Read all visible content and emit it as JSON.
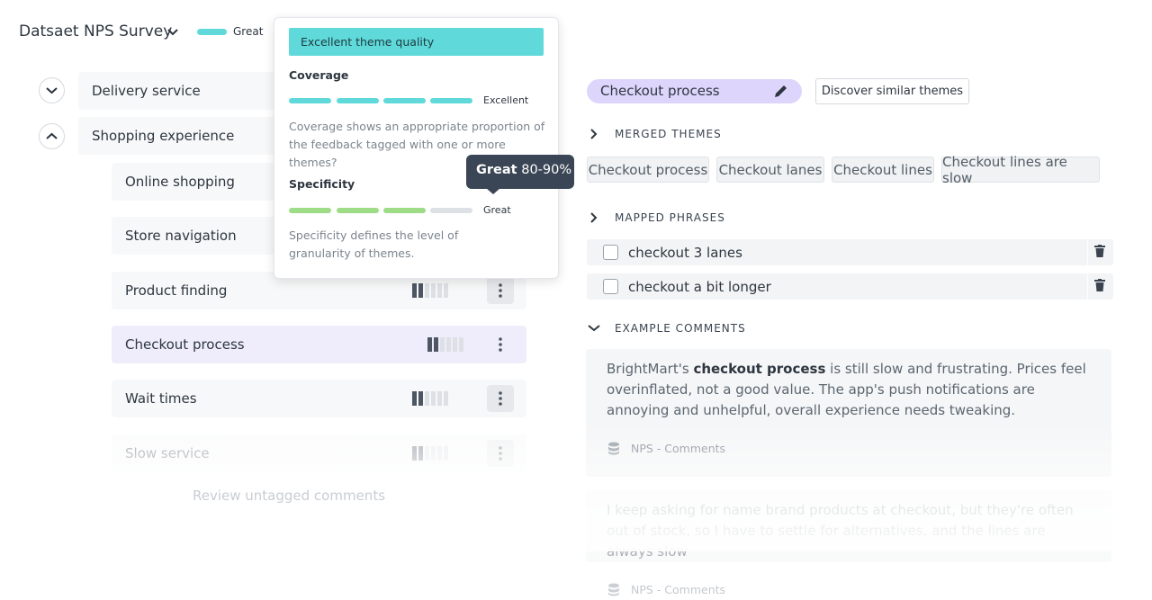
{
  "header": {
    "title": "Datsaet NPS Survey",
    "quality_label": "Great"
  },
  "themes": [
    {
      "label": "Delivery service"
    },
    {
      "label": "Shopping experience"
    }
  ],
  "subthemes": [
    {
      "label": "Online shopping"
    },
    {
      "label": "Store navigation"
    },
    {
      "label": "Product finding"
    },
    {
      "label": "Checkout process"
    },
    {
      "label": "Wait times"
    },
    {
      "label": "Slow service"
    }
  ],
  "review_link": "Review untagged comments",
  "popover": {
    "banner": "Excellent theme quality",
    "coverage": {
      "title": "Coverage",
      "rating": "Excellent",
      "description": "Coverage shows an appropriate proportion of the feedback tagged with one or more themes?"
    },
    "specificity": {
      "title": "Specificity",
      "rating": "Great",
      "description": "Specificity defines the level of granularity of themes."
    }
  },
  "tooltip": {
    "label": "Great",
    "range": "80-90%"
  },
  "detail": {
    "theme": "Checkout process",
    "discover_button": "Discover similar themes",
    "merged_title": "MERGED THEMES",
    "merged": [
      "Checkout process",
      "Checkout lanes",
      "Checkout lines",
      "Checkout lines are slow"
    ],
    "mapped_title": "MAPPED PHRASES",
    "phrases": [
      "checkout 3 lanes",
      "checkout a bit longer"
    ],
    "examples_title": "EXAMPLE COMMENTS",
    "comments": [
      {
        "before": "BrightMart's ",
        "highlight": "checkout process",
        "after": " is still slow and frustrating. Prices feel overinflated, not a good value. The app's push notifications are annoying and unhelpful, overall experience needs tweaking.",
        "source": "NPS - Comments"
      },
      {
        "before": "I keep asking for name brand products at checkout, but they're often out of stock, so I have to settle for alternatives, and the lines are always slow",
        "highlight": "",
        "after": "",
        "source": "NPS - Comments"
      }
    ]
  }
}
